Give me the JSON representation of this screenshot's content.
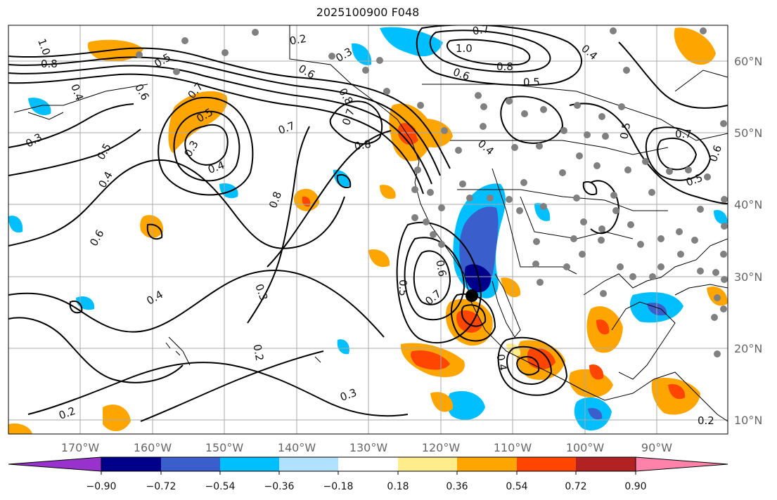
{
  "title": "2025100900 F048",
  "lon_labels": [
    "170°W",
    "160°W",
    "150°W",
    "140°W",
    "130°W",
    "120°W",
    "110°W",
    "100°W",
    "90°W"
  ],
  "lat_labels": [
    "60°N",
    "50°N",
    "40°N",
    "30°N",
    "20°N",
    "10°N"
  ],
  "colorbar": {
    "ticks": [
      "−0.90",
      "−0.72",
      "−0.54",
      "−0.36",
      "−0.18",
      "0.18",
      "0.36",
      "0.54",
      "0.72",
      "0.90"
    ],
    "colors": [
      "#9932cc",
      "#00008b",
      "#3a5fcd",
      "#00bfff",
      "#b0e2ff",
      "#ffffff",
      "#ffec8b",
      "#ffa500",
      "#ff4500",
      "#b22222",
      "#ff82ab"
    ]
  },
  "contour_labels": [
    "1.0",
    "0.8",
    "0.5",
    "0.4",
    "0.6",
    "0.3",
    "0.5",
    "0.4",
    "0.6",
    "0.7",
    "0.3",
    "0.4",
    "0.5",
    "0.7",
    "0.8",
    "0.8",
    "0.2",
    "0.3",
    "0.6",
    "0.7",
    "0.8",
    "0.3",
    "0.2",
    "0.4",
    "0.2",
    "0.3",
    "0.6",
    "0.7",
    "0.4",
    "0.5",
    "0.4",
    "0.7",
    "1.0",
    "0.8",
    "0.6",
    "0.5",
    "0.4",
    "0.5",
    "0.7",
    "0.5",
    "0.6",
    "0.2"
  ],
  "colors": {
    "contour": "#000000",
    "grid": "#aaaaaa",
    "station": "#808080",
    "marker": "#000000",
    "coast": "#000000"
  }
}
